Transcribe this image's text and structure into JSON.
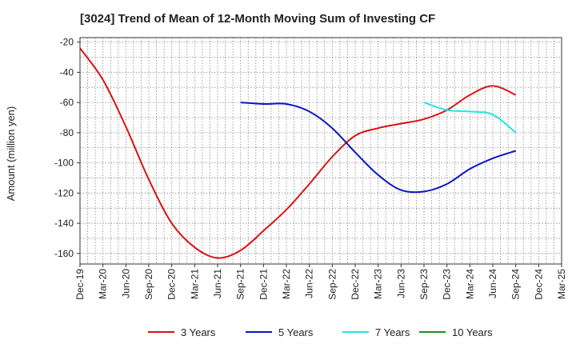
{
  "chart_data": {
    "type": "line",
    "title": "[3024]  Trend of Mean of 12-Month Moving Sum of Investing CF",
    "ylabel": "Amount (million yen)",
    "xlabel": "",
    "ylim": [
      -167,
      -17
    ],
    "yticks": [
      -20,
      -40,
      -60,
      -80,
      -100,
      -120,
      -140,
      -160
    ],
    "categories": [
      "Dec-19",
      "Mar-20",
      "Jun-20",
      "Sep-20",
      "Dec-20",
      "Mar-21",
      "Jun-21",
      "Sep-21",
      "Dec-21",
      "Mar-22",
      "Jun-22",
      "Sep-22",
      "Dec-22",
      "Mar-23",
      "Jun-23",
      "Sep-23",
      "Dec-23",
      "Mar-24",
      "Jun-24",
      "Sep-24",
      "Dec-24",
      "Mar-25"
    ],
    "grid": true,
    "legend_position": "bottom",
    "series": [
      {
        "name": "3 Years",
        "color": "#dd1111",
        "values": [
          -24,
          -45,
          -76,
          -111,
          -140,
          -156,
          -163,
          -158,
          -145,
          -131,
          -114,
          -96,
          -82,
          -77,
          -74,
          -71,
          -65,
          -55,
          -49,
          -55,
          null,
          null
        ]
      },
      {
        "name": "5 Years",
        "color": "#0a16c8",
        "values": [
          null,
          null,
          null,
          null,
          null,
          null,
          null,
          -60,
          -61,
          -61,
          -66,
          -77,
          -93,
          -108,
          -118,
          -119,
          -114,
          -104,
          -97,
          -92,
          null,
          null
        ]
      },
      {
        "name": "7 Years",
        "color": "#22e4e4",
        "values": [
          null,
          null,
          null,
          null,
          null,
          null,
          null,
          null,
          null,
          null,
          null,
          null,
          null,
          null,
          null,
          -60,
          -65,
          -66,
          -68,
          -80,
          null,
          null
        ]
      },
      {
        "name": "10 Years",
        "color": "#1f8f1f",
        "values": [
          null,
          null,
          null,
          null,
          null,
          null,
          null,
          null,
          null,
          null,
          null,
          null,
          null,
          null,
          null,
          null,
          null,
          null,
          null,
          null,
          null,
          null
        ]
      }
    ]
  }
}
